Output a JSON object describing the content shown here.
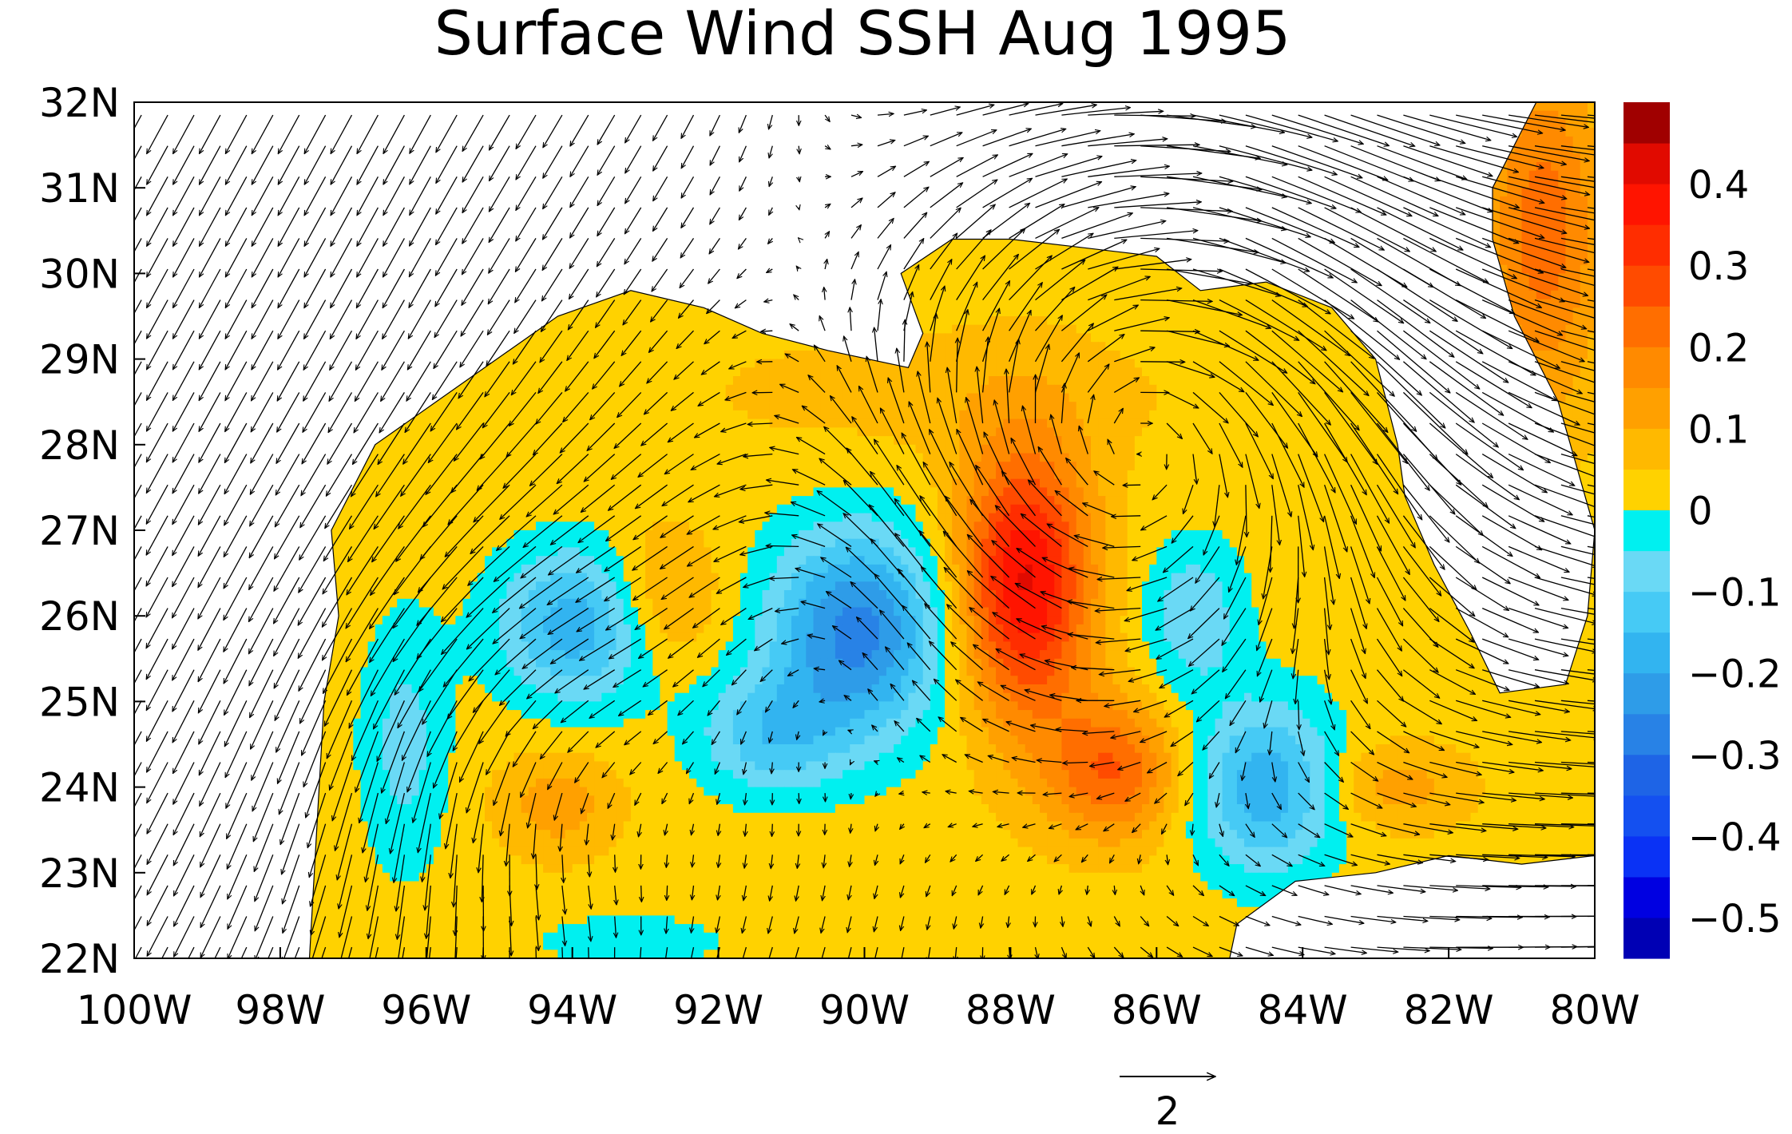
{
  "title": "Surface Wind SSH Aug 1995",
  "map": {
    "lon_range": [
      -100,
      -80
    ],
    "lat_range": [
      22,
      32
    ],
    "x_ticks": [
      {
        "value": -100,
        "label": "100W"
      },
      {
        "value": -98,
        "label": "98W"
      },
      {
        "value": -96,
        "label": "96W"
      },
      {
        "value": -94,
        "label": "94W"
      },
      {
        "value": -92,
        "label": "92W"
      },
      {
        "value": -90,
        "label": "90W"
      },
      {
        "value": -88,
        "label": "88W"
      },
      {
        "value": -86,
        "label": "86W"
      },
      {
        "value": -84,
        "label": "84W"
      },
      {
        "value": -82,
        "label": "82W"
      },
      {
        "value": -80,
        "label": "80W"
      }
    ],
    "y_ticks": [
      {
        "value": 32,
        "label": "32N"
      },
      {
        "value": 31,
        "label": "31N"
      },
      {
        "value": 30,
        "label": "30N"
      },
      {
        "value": 29,
        "label": "29N"
      },
      {
        "value": 28,
        "label": "28N"
      },
      {
        "value": 27,
        "label": "27N"
      },
      {
        "value": 26,
        "label": "26N"
      },
      {
        "value": 25,
        "label": "25N"
      },
      {
        "value": 24,
        "label": "24N"
      },
      {
        "value": 23,
        "label": "23N"
      },
      {
        "value": 22,
        "label": "22N"
      }
    ],
    "ssh_features": [
      {
        "lon": -87.8,
        "lat": 26.4,
        "amp": 0.38,
        "rlon": 0.9,
        "rlat": 1.6
      },
      {
        "lon": -86.6,
        "lat": 24.2,
        "amp": 0.22,
        "rlon": 0.9,
        "rlat": 0.8
      },
      {
        "lon": -90.1,
        "lat": 25.8,
        "amp": -0.3,
        "rlon": 1.2,
        "rlat": 1.2
      },
      {
        "lon": -91.3,
        "lat": 24.6,
        "amp": -0.15,
        "rlon": 1.0,
        "rlat": 0.7
      },
      {
        "lon": -93.9,
        "lat": 25.9,
        "amp": -0.22,
        "rlon": 1.1,
        "rlat": 0.9
      },
      {
        "lon": -84.5,
        "lat": 24.0,
        "amp": -0.22,
        "rlon": 1.0,
        "rlat": 1.0
      },
      {
        "lon": -85.5,
        "lat": 26.0,
        "amp": -0.12,
        "rlon": 0.7,
        "rlat": 0.9
      },
      {
        "lon": -96.3,
        "lat": 24.5,
        "amp": -0.1,
        "rlon": 0.6,
        "rlat": 1.5
      },
      {
        "lon": -93.2,
        "lat": 22.2,
        "amp": -0.08,
        "rlon": 1.2,
        "rlat": 0.3
      },
      {
        "lon": -92.8,
        "lat": 26.2,
        "amp": 0.12,
        "rlon": 0.8,
        "rlat": 0.8
      },
      {
        "lon": -94.2,
        "lat": 23.8,
        "amp": 0.1,
        "rlon": 0.8,
        "rlat": 0.6
      },
      {
        "lon": -80.7,
        "lat": 30.5,
        "amp": 0.2,
        "rlon": 0.8,
        "rlat": 2.0
      },
      {
        "lon": -82.8,
        "lat": 24.0,
        "amp": 0.1,
        "rlon": 1.0,
        "rlat": 0.5
      },
      {
        "lon": -89.0,
        "lat": 28.6,
        "amp": 0.04,
        "rlon": 3.5,
        "rlat": 0.8
      }
    ],
    "wind_features": [
      {
        "lon": -86.0,
        "lat": 28.5,
        "amp": 2.6,
        "r": 2.5
      },
      {
        "lon": -94.5,
        "lat": 24.5,
        "amp": -1.2,
        "r": 1.8
      },
      {
        "lon": -90.5,
        "lat": 26.0,
        "amp": -1.0,
        "r": 1.5
      }
    ],
    "land": [
      [
        [
          -100,
          32
        ],
        [
          -100,
          22
        ],
        [
          -97.6,
          22
        ],
        [
          -97.5,
          23.5
        ],
        [
          -97.4,
          25
        ],
        [
          -97.2,
          26
        ],
        [
          -97.3,
          27
        ],
        [
          -96.7,
          28
        ],
        [
          -95.2,
          28.9
        ],
        [
          -94.2,
          29.5
        ],
        [
          -93.2,
          29.8
        ],
        [
          -92.2,
          29.6
        ],
        [
          -91.4,
          29.3
        ],
        [
          -90.5,
          29.1
        ],
        [
          -89.4,
          28.9
        ],
        [
          -89.2,
          29.3
        ],
        [
          -89.5,
          30.0
        ],
        [
          -88.8,
          30.4
        ],
        [
          -88.0,
          30.4
        ],
        [
          -87.0,
          30.3
        ],
        [
          -86.0,
          30.2
        ],
        [
          -85.4,
          29.8
        ],
        [
          -84.5,
          29.9
        ],
        [
          -83.6,
          29.6
        ],
        [
          -83.0,
          29.0
        ],
        [
          -82.7,
          28.0
        ],
        [
          -82.6,
          27.4
        ],
        [
          -82.2,
          26.6
        ],
        [
          -81.7,
          25.8
        ],
        [
          -81.3,
          25.1
        ],
        [
          -80.4,
          25.2
        ],
        [
          -80.1,
          26.0
        ],
        [
          -80.0,
          27.0
        ],
        [
          -80.5,
          28.5
        ],
        [
          -81.1,
          29.5
        ],
        [
          -81.4,
          30.4
        ],
        [
          -81.4,
          31.0
        ],
        [
          -80.8,
          32.0
        ]
      ],
      [
        [
          -85.0,
          22.0
        ],
        [
          -84.9,
          22.4
        ],
        [
          -84.1,
          22.9
        ],
        [
          -83.0,
          23.0
        ],
        [
          -82.0,
          23.2
        ],
        [
          -81.0,
          23.1
        ],
        [
          -80.0,
          23.2
        ],
        [
          -80.0,
          22.0
        ]
      ]
    ]
  },
  "colorbar": {
    "levels": [
      -0.55,
      -0.5,
      -0.45,
      -0.4,
      -0.35,
      -0.3,
      -0.25,
      -0.2,
      -0.15,
      -0.1,
      -0.05,
      0,
      0.05,
      0.1,
      0.15,
      0.2,
      0.25,
      0.3,
      0.35,
      0.4,
      0.45,
      0.5
    ],
    "colors": [
      "#0000b4",
      "#0000e1",
      "#0a32f5",
      "#1450f0",
      "#1e64e6",
      "#2882e6",
      "#2e9ce8",
      "#32b4f0",
      "#46caf5",
      "#6ad9f5",
      "#00f0f0",
      "#ffd200",
      "#ffb900",
      "#ffa000",
      "#ff8a00",
      "#ff6e00",
      "#ff4b00",
      "#ff2d00",
      "#ff1400",
      "#e10a00",
      "#a00000"
    ],
    "tick_labels": [
      {
        "value": 0.4,
        "label": "0.4"
      },
      {
        "value": 0.3,
        "label": "0.3"
      },
      {
        "value": 0.2,
        "label": "0.2"
      },
      {
        "value": 0.1,
        "label": "0.1"
      },
      {
        "value": 0,
        "label": "0"
      },
      {
        "value": -0.1,
        "label": "−0.1"
      },
      {
        "value": -0.2,
        "label": "−0.2"
      },
      {
        "value": -0.3,
        "label": "−0.3"
      },
      {
        "value": -0.4,
        "label": "−0.4"
      },
      {
        "value": -0.5,
        "label": "−0.5"
      }
    ]
  },
  "reference_vector": {
    "label": "2",
    "magnitude": 2
  }
}
